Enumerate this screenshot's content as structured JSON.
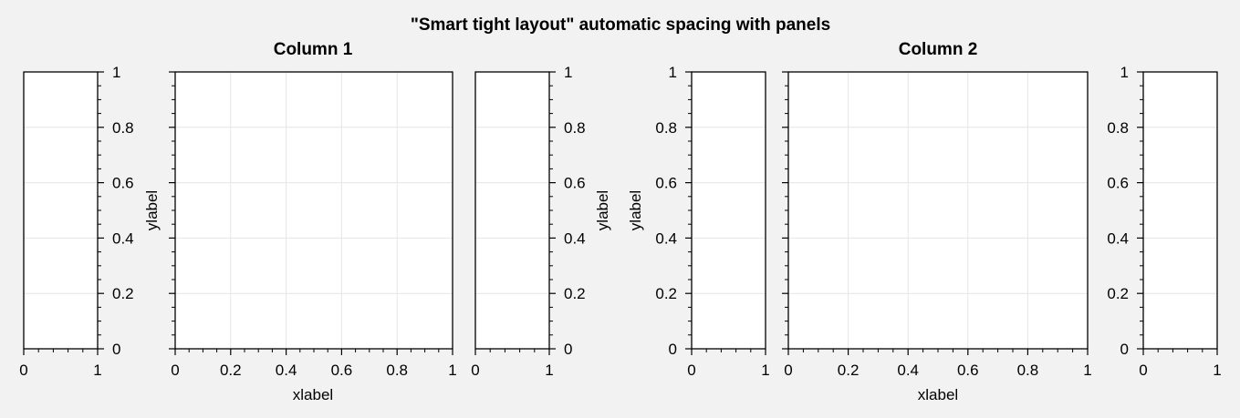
{
  "figure": {
    "suptitle": "\"Smart tight layout\" automatic spacing with panels",
    "columns": [
      {
        "title": "Column 1",
        "xlabel": "xlabel",
        "ylabel": "ylabel"
      },
      {
        "title": "Column 2",
        "xlabel": "xlabel",
        "ylabel": "ylabel"
      }
    ]
  },
  "colors": {
    "background": "#f2f2f2",
    "axes_face": "#ffffff",
    "grid": "#e6e6e6",
    "spine": "#000000"
  },
  "chart_data": [
    {
      "id": "c1-left-panel",
      "type": "line",
      "series": [],
      "xlim": [
        0,
        1
      ],
      "ylim": [
        0,
        1
      ],
      "xticks": [
        "0",
        "1"
      ],
      "yticks": [
        "0",
        "0.2",
        "0.4",
        "0.6",
        "0.8",
        "1"
      ],
      "ytick_side": "right",
      "grid": true,
      "title": "",
      "xlabel": "",
      "ylabel": ""
    },
    {
      "id": "c1-main",
      "type": "line",
      "series": [],
      "xlim": [
        0,
        1
      ],
      "ylim": [
        0,
        1
      ],
      "xticks": [
        "0",
        "0.2",
        "0.4",
        "0.6",
        "0.8",
        "1"
      ],
      "yticks": [],
      "ytick_side": "left",
      "grid": true,
      "title": "Column 1",
      "xlabel": "xlabel",
      "ylabel": "ylabel"
    },
    {
      "id": "c1-right-panel",
      "type": "line",
      "series": [],
      "xlim": [
        0,
        1
      ],
      "ylim": [
        0,
        1
      ],
      "xticks": [
        "0",
        "1"
      ],
      "yticks": [
        "0",
        "0.2",
        "0.4",
        "0.6",
        "0.8",
        "1"
      ],
      "ytick_side": "right",
      "grid": true,
      "title": "",
      "xlabel": "",
      "ylabel": "ylabel"
    },
    {
      "id": "c2-left-panel",
      "type": "line",
      "series": [],
      "xlim": [
        0,
        1
      ],
      "ylim": [
        0,
        1
      ],
      "xticks": [
        "0",
        "1"
      ],
      "yticks": [
        "0",
        "0.2",
        "0.4",
        "0.6",
        "0.8",
        "1"
      ],
      "ytick_side": "left",
      "grid": true,
      "title": "",
      "xlabel": "",
      "ylabel": "ylabel"
    },
    {
      "id": "c2-main",
      "type": "line",
      "series": [],
      "xlim": [
        0,
        1
      ],
      "ylim": [
        0,
        1
      ],
      "xticks": [
        "0",
        "0.2",
        "0.4",
        "0.6",
        "0.8",
        "1"
      ],
      "yticks": [],
      "ytick_side": "left",
      "grid": true,
      "title": "Column 2",
      "xlabel": "xlabel",
      "ylabel": ""
    },
    {
      "id": "c2-right-panel",
      "type": "line",
      "series": [],
      "xlim": [
        0,
        1
      ],
      "ylim": [
        0,
        1
      ],
      "xticks": [
        "0",
        "1"
      ],
      "yticks": [
        "0",
        "0.2",
        "0.4",
        "0.6",
        "0.8",
        "1"
      ],
      "ytick_side": "left",
      "grid": true,
      "title": "",
      "xlabel": "",
      "ylabel": ""
    }
  ]
}
